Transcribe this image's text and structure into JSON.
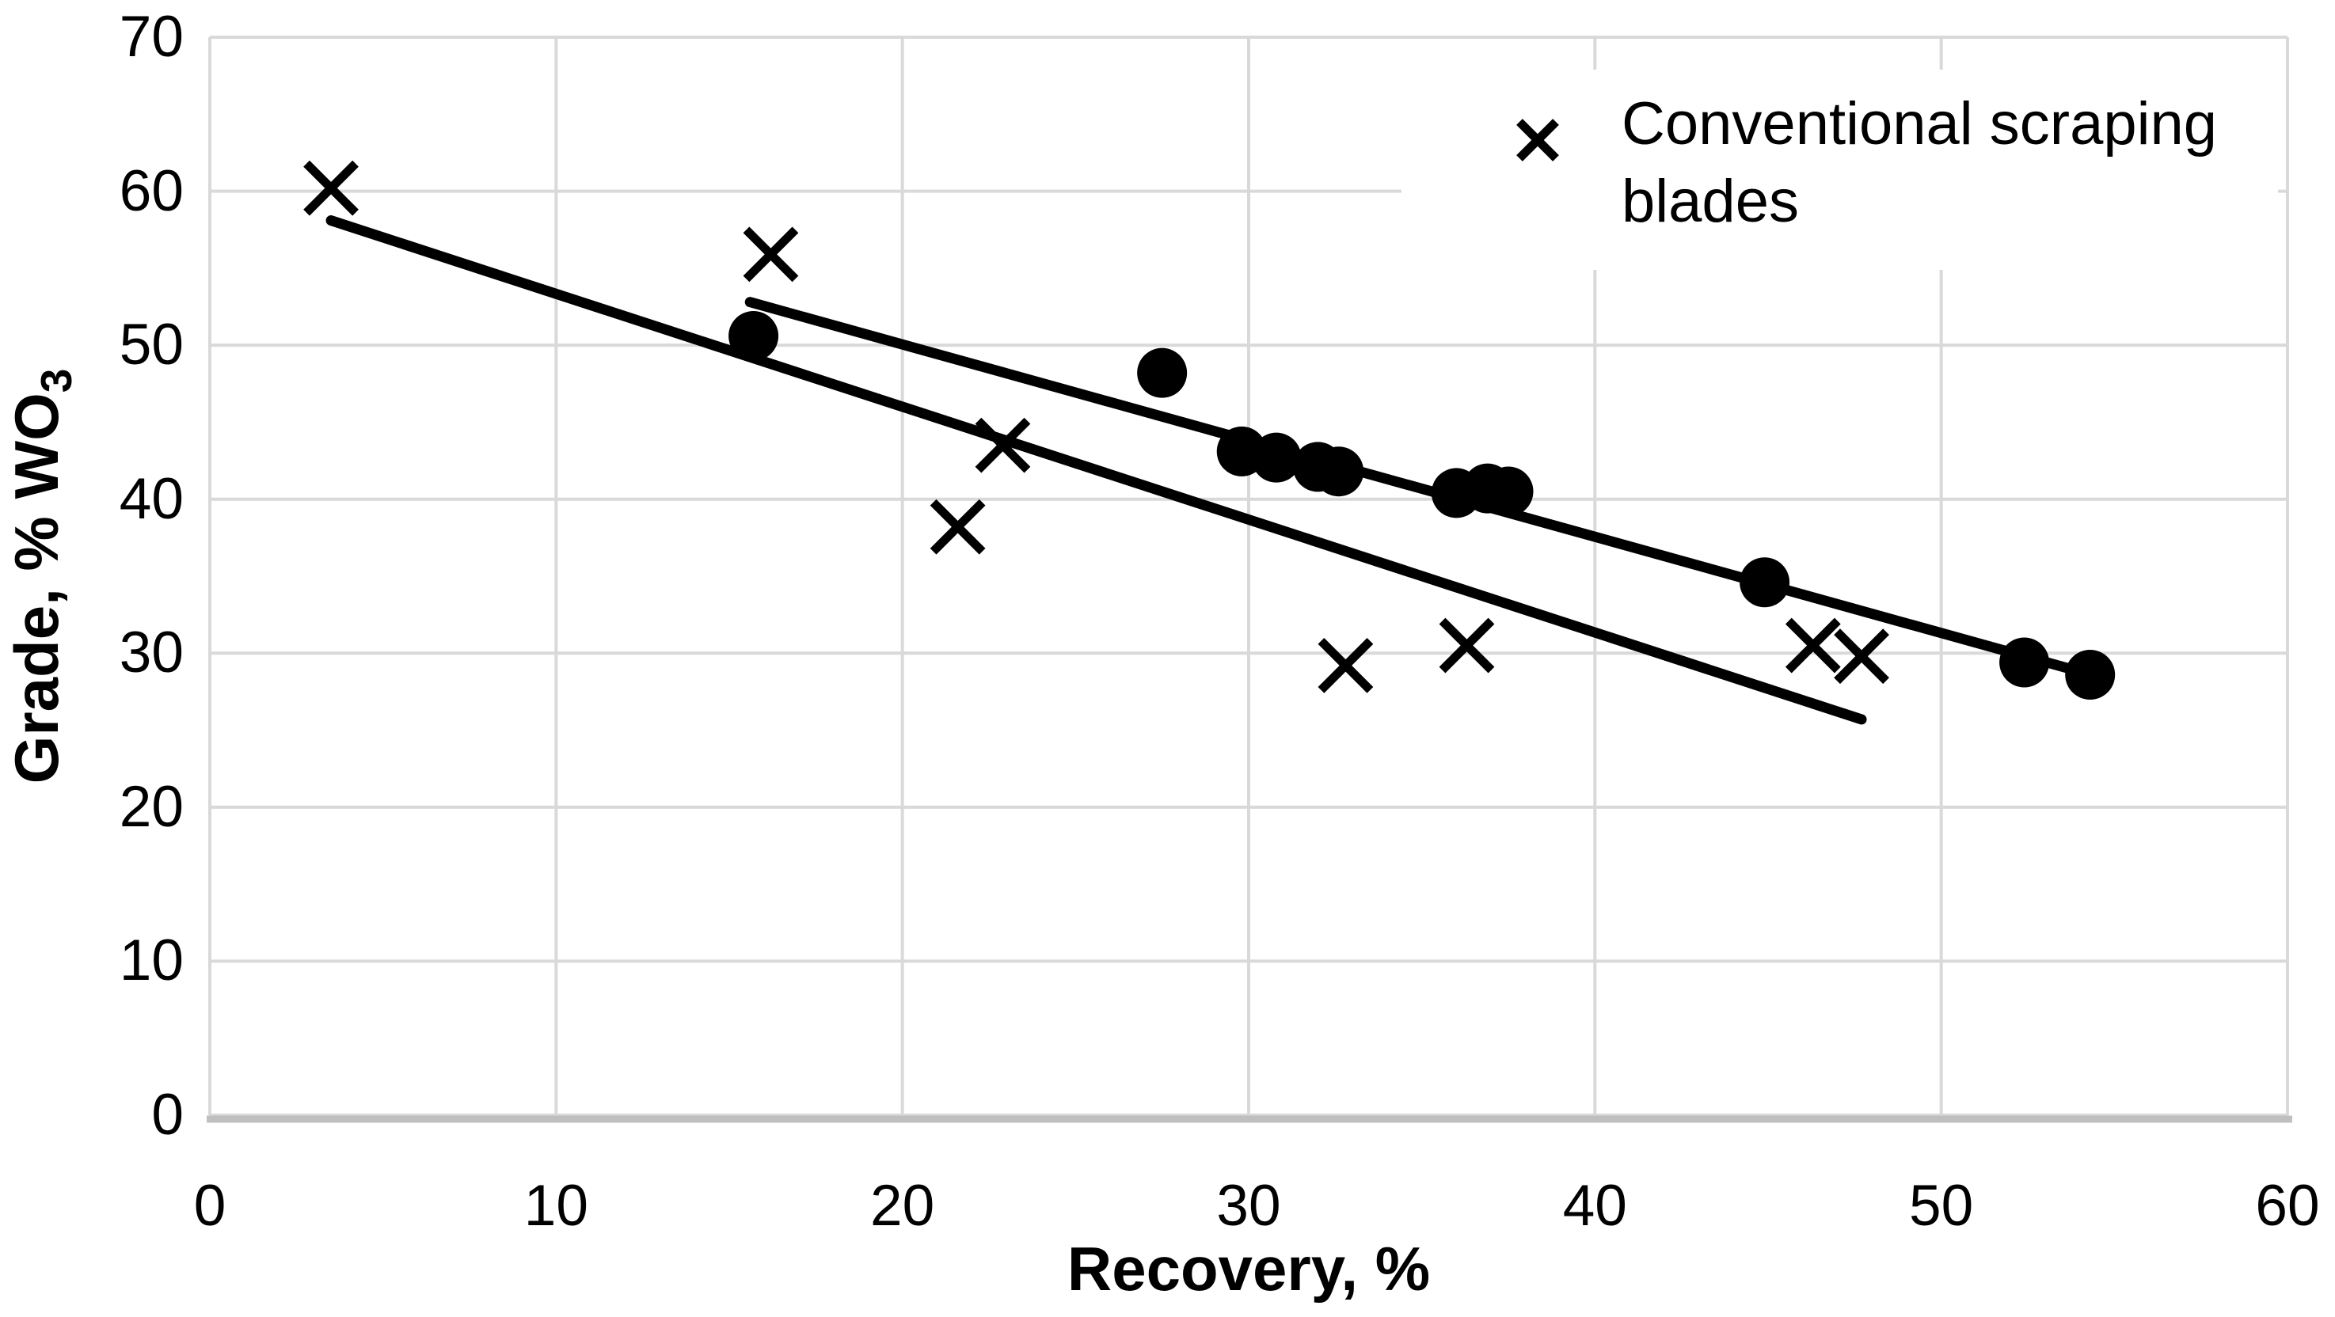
{
  "chart_data": {
    "type": "scatter",
    "title": "",
    "xlabel": "Recovery, %",
    "ylabel": "Grade, % WO",
    "ylabel_sub": "3",
    "xlim": [
      0,
      60
    ],
    "ylim": [
      0,
      70
    ],
    "x_ticks": [
      0,
      10,
      20,
      30,
      40,
      50,
      60
    ],
    "y_ticks": [
      0,
      10,
      20,
      30,
      40,
      50,
      60,
      70
    ],
    "grid": true,
    "legend_position": "top-right",
    "series": [
      {
        "name": "Conventional scraping blades",
        "marker": "x",
        "in_legend": true,
        "points": [
          [
            3.5,
            60.2
          ],
          [
            16.2,
            55.9
          ],
          [
            21.6,
            38.2
          ],
          [
            22.9,
            43.5
          ],
          [
            32.8,
            29.2
          ],
          [
            36.3,
            30.5
          ],
          [
            46.3,
            30.5
          ],
          [
            47.7,
            29.8
          ]
        ],
        "trend_line": {
          "start": [
            3.5,
            58.1
          ],
          "end": [
            47.7,
            25.7
          ]
        }
      },
      {
        "name": "",
        "marker": "circle",
        "in_legend": false,
        "points": [
          [
            15.7,
            50.6
          ],
          [
            27.5,
            48.2
          ],
          [
            29.8,
            43.1
          ],
          [
            30.8,
            42.7
          ],
          [
            32.0,
            42.1
          ],
          [
            32.6,
            41.8
          ],
          [
            36.0,
            40.4
          ],
          [
            36.9,
            40.7
          ],
          [
            37.5,
            40.5
          ],
          [
            44.9,
            34.6
          ],
          [
            52.4,
            29.4
          ],
          [
            54.3,
            28.6
          ]
        ],
        "trend_line": {
          "start": [
            15.6,
            52.8
          ],
          "end": [
            54.5,
            28.5
          ]
        }
      }
    ],
    "legend": {
      "entries": [
        {
          "marker": "x",
          "label": "Conventional scraping blades"
        }
      ]
    },
    "colors": {
      "series": "#000000",
      "gridline": "#d9d9d9",
      "axis_line": "#bfbfbf",
      "background": "#ffffff",
      "legend_border": "#000000",
      "text": "#000000"
    }
  }
}
